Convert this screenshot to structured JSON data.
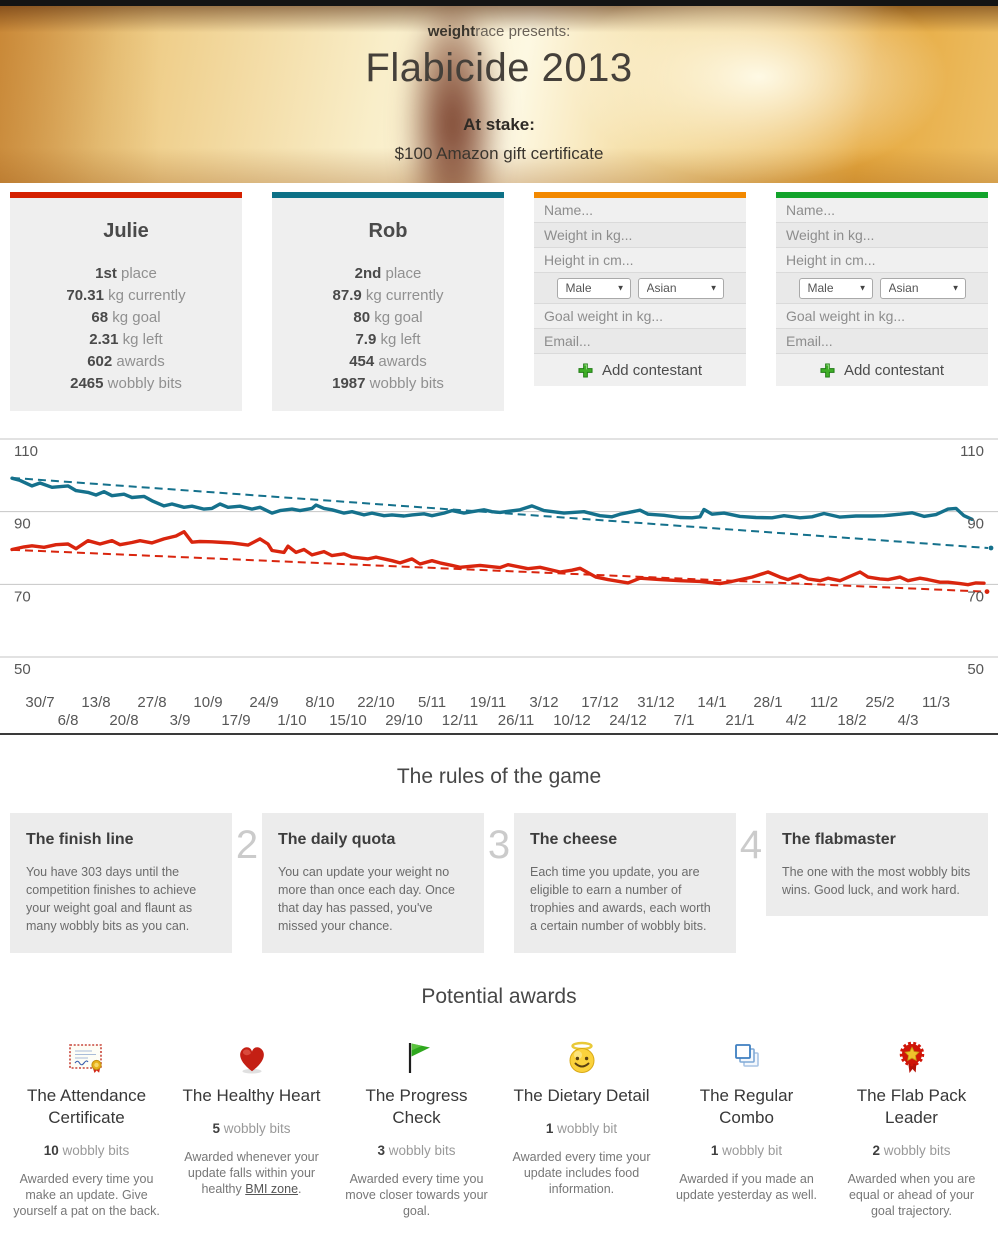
{
  "header": {
    "presents_bold": "weight",
    "presents_rest": "race presents:",
    "title": "Flabicide 2013",
    "at_stake_label": "At stake:",
    "prize": "$100 Amazon gift certificate"
  },
  "colors": {
    "julie_red": "#d42000",
    "rob_teal": "#0c7086",
    "form_orange": "#f28800",
    "form_green": "#12a32b",
    "chart_red": "#d9250e",
    "chart_teal": "#15718c"
  },
  "contestants": [
    {
      "name": "Julie",
      "stats": [
        {
          "v": "1st",
          "l": " place"
        },
        {
          "v": "70.31",
          "l": " kg currently"
        },
        {
          "v": "68",
          "l": " kg goal"
        },
        {
          "v": "2.31",
          "l": " kg left"
        },
        {
          "v": "602",
          "l": " awards"
        },
        {
          "v": "2465",
          "l": " wobbly bits"
        }
      ]
    },
    {
      "name": "Rob",
      "stats": [
        {
          "v": "2nd",
          "l": " place"
        },
        {
          "v": "87.9",
          "l": " kg currently"
        },
        {
          "v": "80",
          "l": " kg goal"
        },
        {
          "v": "7.9",
          "l": " kg left"
        },
        {
          "v": "454",
          "l": " awards"
        },
        {
          "v": "1987",
          "l": " wobbly bits"
        }
      ]
    }
  ],
  "form": {
    "name_placeholder": "Name...",
    "weight_placeholder": "Weight in kg...",
    "height_placeholder": "Height in cm...",
    "goal_placeholder": "Goal weight in kg...",
    "email_placeholder": "Email...",
    "gender_value": "Male",
    "ethnicity_value": "Asian",
    "submit_label": "Add contestant"
  },
  "chart_data": {
    "type": "line",
    "unit": "kg",
    "grid": true,
    "y_gridlines": [
      110,
      90,
      70,
      50
    ],
    "ylim": [
      48,
      112
    ],
    "x_tick_labels_row1": [
      "30/7",
      "13/8",
      "27/8",
      "10/9",
      "24/9",
      "8/10",
      "22/10",
      "5/11",
      "19/11",
      "3/12",
      "17/12",
      "31/12",
      "14/1",
      "28/1",
      "11/2",
      "25/2",
      "11/3"
    ],
    "x_tick_labels_row2": [
      "6/8",
      "20/8",
      "3/9",
      "17/9",
      "1/10",
      "15/10",
      "29/10",
      "12/11",
      "26/11",
      "10/12",
      "24/12",
      "7/1",
      "21/1",
      "4/2",
      "18/2",
      "4/3"
    ],
    "series": [
      {
        "name": "Julie",
        "color": "#d9250e",
        "points": [
          [
            0,
            79.6
          ],
          [
            3,
            80.3
          ],
          [
            5,
            80.6
          ],
          [
            8,
            80.2
          ],
          [
            11,
            80.9
          ],
          [
            14,
            81.1
          ],
          [
            16,
            79.8
          ],
          [
            19,
            82.0
          ],
          [
            22,
            81.1
          ],
          [
            25,
            82.0
          ],
          [
            27,
            80.9
          ],
          [
            30,
            81.5
          ],
          [
            32,
            82.0
          ],
          [
            35,
            81.4
          ],
          [
            38,
            82.5
          ],
          [
            41,
            83.3
          ],
          [
            43,
            84.5
          ],
          [
            45,
            81.6
          ],
          [
            47,
            81.8
          ],
          [
            50,
            81.7
          ],
          [
            53,
            81.5
          ],
          [
            55,
            81.4
          ],
          [
            59,
            80.8
          ],
          [
            62,
            82.5
          ],
          [
            64,
            81.1
          ],
          [
            65,
            79.3
          ],
          [
            68,
            78.8
          ],
          [
            69,
            80.5
          ],
          [
            71,
            78.8
          ],
          [
            73,
            79.6
          ],
          [
            75,
            78.1
          ],
          [
            78,
            79.0
          ],
          [
            80,
            77.9
          ],
          [
            83,
            78.4
          ],
          [
            85,
            77.5
          ],
          [
            89,
            77.0
          ],
          [
            91,
            77.5
          ],
          [
            95,
            76.5
          ],
          [
            97,
            75.9
          ],
          [
            100,
            77.0
          ],
          [
            102,
            75.6
          ],
          [
            105,
            76.5
          ],
          [
            107,
            75.9
          ],
          [
            110,
            75.2
          ],
          [
            112,
            74.7
          ],
          [
            117,
            75.2
          ],
          [
            122,
            74.6
          ],
          [
            124,
            75.4
          ],
          [
            129,
            74.3
          ],
          [
            132,
            74.7
          ],
          [
            137,
            73.4
          ],
          [
            140,
            73.9
          ],
          [
            142,
            74.4
          ],
          [
            146,
            72.0
          ],
          [
            149,
            71.3
          ],
          [
            154,
            70.4
          ],
          [
            157,
            71.7
          ],
          [
            162,
            71.3
          ],
          [
            167,
            71.0
          ],
          [
            172,
            70.8
          ],
          [
            177,
            70.2
          ],
          [
            180,
            70.8
          ],
          [
            185,
            72.0
          ],
          [
            189,
            73.4
          ],
          [
            192,
            72.0
          ],
          [
            194,
            71.3
          ],
          [
            197,
            72.5
          ],
          [
            199,
            71.5
          ],
          [
            202,
            71.0
          ],
          [
            204,
            71.7
          ],
          [
            207,
            71.0
          ],
          [
            212,
            73.4
          ],
          [
            214,
            72.0
          ],
          [
            217,
            71.5
          ],
          [
            219,
            71.3
          ],
          [
            222,
            72.0
          ],
          [
            224,
            71.0
          ],
          [
            227,
            71.7
          ],
          [
            229,
            71.3
          ],
          [
            232,
            70.6
          ],
          [
            234,
            70.6
          ],
          [
            237,
            70.2
          ],
          [
            239,
            69.9
          ],
          [
            241,
            70.4
          ],
          [
            243,
            70.31
          ]
        ]
      },
      {
        "name": "Rob",
        "color": "#15718c",
        "points": [
          [
            0,
            99.2
          ],
          [
            2,
            98.6
          ],
          [
            5,
            97.1
          ],
          [
            7,
            97.9
          ],
          [
            10,
            96.7
          ],
          [
            14,
            97.1
          ],
          [
            16,
            95.8
          ],
          [
            19,
            95.3
          ],
          [
            21,
            94.6
          ],
          [
            23,
            95.5
          ],
          [
            25,
            94.4
          ],
          [
            28,
            94.8
          ],
          [
            30,
            93.9
          ],
          [
            33,
            94.2
          ],
          [
            35,
            93.0
          ],
          [
            38,
            91.6
          ],
          [
            40,
            92.1
          ],
          [
            43,
            91.2
          ],
          [
            45,
            91.5
          ],
          [
            48,
            90.7
          ],
          [
            50,
            90.9
          ],
          [
            52,
            92.1
          ],
          [
            54,
            91.2
          ],
          [
            57,
            91.5
          ],
          [
            60,
            90.7
          ],
          [
            62,
            91.2
          ],
          [
            65,
            89.6
          ],
          [
            67,
            90.3
          ],
          [
            70,
            90.7
          ],
          [
            72,
            90.3
          ],
          [
            75,
            90.9
          ],
          [
            76,
            91.8
          ],
          [
            78,
            90.9
          ],
          [
            80,
            90.5
          ],
          [
            83,
            89.6
          ],
          [
            85,
            90.0
          ],
          [
            88,
            89.1
          ],
          [
            90,
            89.6
          ],
          [
            93,
            88.9
          ],
          [
            95,
            89.1
          ],
          [
            98,
            88.8
          ],
          [
            100,
            89.1
          ],
          [
            103,
            89.4
          ],
          [
            105,
            88.9
          ],
          [
            108,
            89.6
          ],
          [
            110,
            90.3
          ],
          [
            113,
            89.6
          ],
          [
            115,
            90.0
          ],
          [
            118,
            90.5
          ],
          [
            120,
            90.0
          ],
          [
            122,
            89.8
          ],
          [
            127,
            90.5
          ],
          [
            130,
            91.6
          ],
          [
            133,
            90.3
          ],
          [
            138,
            89.6
          ],
          [
            143,
            90.0
          ],
          [
            147,
            88.9
          ],
          [
            150,
            88.6
          ],
          [
            152,
            89.3
          ],
          [
            157,
            90.4
          ],
          [
            159,
            89.3
          ],
          [
            163,
            89.0
          ],
          [
            167,
            88.4
          ],
          [
            170,
            88.3
          ],
          [
            172,
            88.6
          ],
          [
            173,
            90.6
          ],
          [
            175,
            89.3
          ],
          [
            178,
            89.6
          ],
          [
            182,
            88.7
          ],
          [
            186,
            88.4
          ],
          [
            190,
            88.3
          ],
          [
            193,
            88.9
          ],
          [
            197,
            88.3
          ],
          [
            200,
            88.6
          ],
          [
            203,
            89.5
          ],
          [
            207,
            88.5
          ],
          [
            211,
            88.8
          ],
          [
            215,
            88.8
          ],
          [
            218,
            88.9
          ],
          [
            222,
            89.3
          ],
          [
            225,
            89.7
          ],
          [
            228,
            88.7
          ],
          [
            231,
            89.2
          ],
          [
            234,
            90.7
          ],
          [
            236,
            90.9
          ],
          [
            238,
            88.9
          ],
          [
            240,
            87.9
          ]
        ]
      }
    ],
    "trend_lines": [
      {
        "name": "Julie goal trajectory",
        "color": "#d9250e",
        "from": [
          0,
          79.5
        ],
        "to": [
          243,
          68.0
        ]
      },
      {
        "name": "Rob goal trajectory",
        "color": "#15718c",
        "from": [
          0,
          99.3
        ],
        "to": [
          244,
          80.0
        ]
      }
    ],
    "legend_position": "none"
  },
  "rules": {
    "heading": "The rules of the game",
    "items": [
      {
        "number": "",
        "title": "The finish line",
        "body": "You have 303 days until the competition finishes to achieve your weight goal and flaunt as many wobbly bits as you can."
      },
      {
        "number": "2",
        "title": "The daily quota",
        "body": "You can update your weight no more than once each day. Once that day has passed, you've missed your chance."
      },
      {
        "number": "3",
        "title": "The cheese",
        "body": "Each time you update, you are eligible to earn a number of trophies and awards, each worth a certain number of wobbly bits."
      },
      {
        "number": "4",
        "title": "The flabmaster",
        "body": "The one with the most wobbly bits wins. Good luck, and work hard."
      }
    ]
  },
  "awards": {
    "heading": "Potential awards",
    "items": [
      {
        "icon": "certificate-icon",
        "title": "The Attendance Certificate",
        "value": "10",
        "unit": " wobbly bits",
        "desc": "Awarded every time you make an update. Give yourself a pat on the back."
      },
      {
        "icon": "heart-icon",
        "title": "The Healthy Heart",
        "value": "5",
        "unit": " wobbly bits",
        "desc_before": "Awarded whenever your update falls within your healthy ",
        "link_text": "BMI zone",
        "desc_after": "."
      },
      {
        "icon": "flag-icon",
        "title": "The Progress Check",
        "value": "3",
        "unit": " wobbly bits",
        "desc": "Awarded every time you move closer towards your goal."
      },
      {
        "icon": "halo-smiley-icon",
        "title": "The Dietary Detail",
        "value": "1",
        "unit": " wobbly bit",
        "desc": "Awarded every time your update includes food information."
      },
      {
        "icon": "stacked-windows-icon",
        "title": "The Regular Combo",
        "value": "1",
        "unit": " wobbly bit",
        "desc": "Awarded if you made an update yesterday as well."
      },
      {
        "icon": "rosette-icon",
        "title": "The Flab Pack Leader",
        "value": "2",
        "unit": " wobbly bits",
        "desc": "Awarded when you are equal or ahead of your goal trajectory."
      }
    ]
  }
}
